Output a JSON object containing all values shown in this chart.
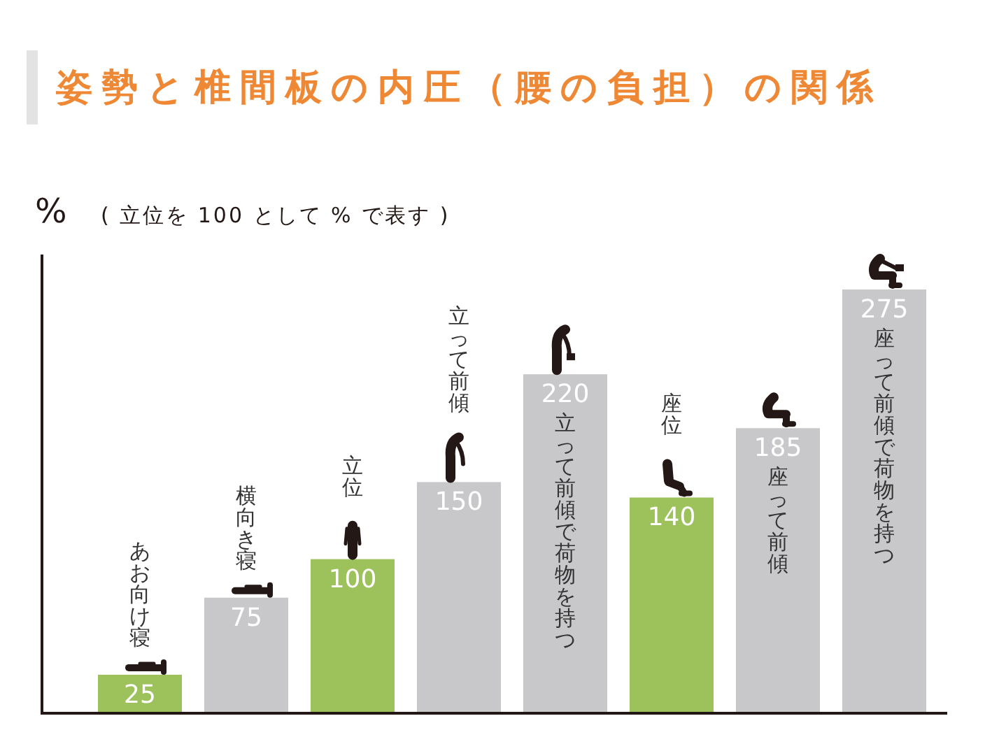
{
  "chart_data": {
    "type": "bar",
    "title": "姿勢と椎間板の内圧（腰の負担）の関係",
    "subtitle": "( 立位を 100 として % で表す )",
    "ylabel": "%",
    "categories": [
      "あお向け寝",
      "横向き寝",
      "立位",
      "立って前傾",
      "立って前傾で荷物を持つ",
      "座位",
      "座って前傾",
      "座って前傾で荷物を持つ"
    ],
    "values": [
      25,
      75,
      100,
      150,
      220,
      140,
      185,
      275
    ],
    "colors": [
      "#9dc15b",
      "#c8c8ca",
      "#9dc15b",
      "#c8c8ca",
      "#c8c8ca",
      "#9dc15b",
      "#c8c8ca",
      "#c8c8ca"
    ],
    "data_labels": true
  }
}
